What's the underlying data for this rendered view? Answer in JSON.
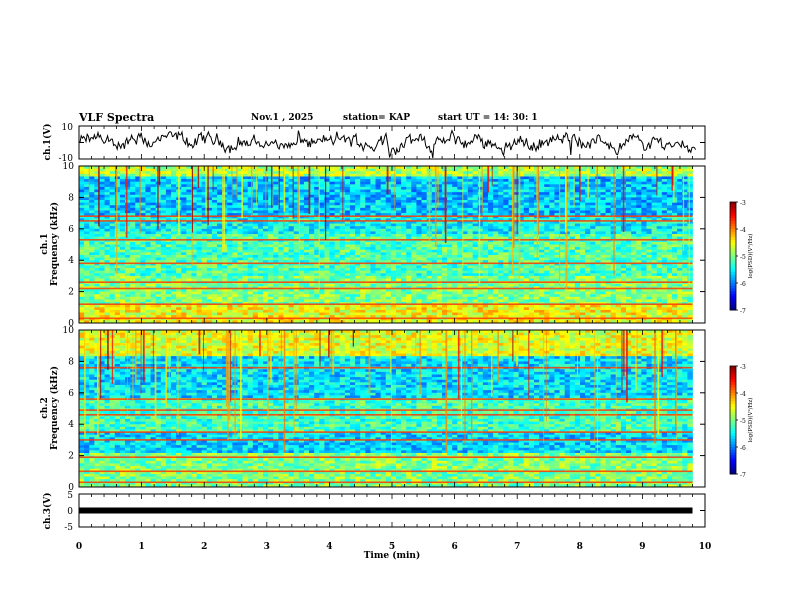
{
  "header": {
    "title": "VLF Spectra",
    "date": "Nov.1 , 2025",
    "station": "station= KAP",
    "start_ut": "start UT = 14: 30: 1"
  },
  "chart_data": [
    {
      "name": "ch1-waveform",
      "type": "line",
      "ylabel": "ch.1(V)",
      "ylim": [
        -10,
        10
      ],
      "yticks": [
        10,
        -10
      ],
      "xlim": [
        0,
        10
      ]
    },
    {
      "name": "ch1-spectrogram",
      "type": "heatmap",
      "ylabel_line1": "ch.1",
      "ylabel_line2": "Frequency (kHz)",
      "ylim": [
        0,
        10
      ],
      "yticks": [
        0,
        2,
        4,
        6,
        8,
        10
      ],
      "xlim": [
        0,
        10
      ],
      "data_end_min": 9.8,
      "colorbar": {
        "label": "log(PSD)(V²/Hz)",
        "range": [
          -7,
          -3
        ],
        "ticks": [
          -3,
          -4,
          -5,
          -6,
          -7
        ]
      },
      "bands_khz": [
        0.3,
        1.2,
        2.2,
        2.6,
        3.8,
        5.3,
        6.5,
        6.8
      ]
    },
    {
      "name": "ch2-spectrogram",
      "type": "heatmap",
      "ylabel_line1": "ch.2",
      "ylabel_line2": "Frequency (kHz)",
      "ylim": [
        0,
        10
      ],
      "yticks": [
        0,
        2,
        4,
        6,
        8,
        10
      ],
      "xlim": [
        0,
        10
      ],
      "data_end_min": 9.8,
      "colorbar": {
        "label": "log(PSD)(V²/Hz)",
        "range": [
          -7,
          -3
        ],
        "ticks": [
          -3,
          -4,
          -5,
          -6,
          -7
        ]
      },
      "bands_khz": [
        0.3,
        1.0,
        1.9,
        3.0,
        3.5,
        4.6,
        4.9,
        5.6,
        7.6
      ]
    },
    {
      "name": "ch3-waveform",
      "type": "line",
      "ylabel": "ch.3(V)",
      "ylim": [
        -5,
        5
      ],
      "yticks": [
        5,
        0,
        -5
      ],
      "xlim": [
        0,
        10
      ],
      "constant_value": 0
    }
  ],
  "xaxis": {
    "label": "Time (min)",
    "ticks": [
      "0",
      "1",
      "2",
      "3",
      "4",
      "5",
      "6",
      "7",
      "8",
      "9",
      "10"
    ]
  },
  "colors": {
    "frame": "#000000",
    "background": "#ffffff"
  }
}
